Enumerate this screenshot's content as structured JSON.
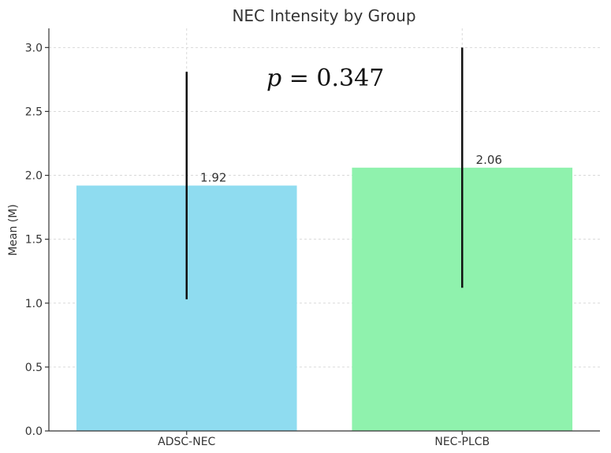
{
  "chart_data": {
    "type": "bar",
    "title": "NEC Intensity by Group",
    "xlabel": "",
    "ylabel": "Mean (M)",
    "categories": [
      "ADSC-NEC",
      "NEC-PLCB"
    ],
    "values": [
      1.92,
      2.06
    ],
    "value_labels": [
      "1.92",
      "2.06"
    ],
    "error_bars": [
      {
        "low": 1.03,
        "high": 2.81
      },
      {
        "low": 1.12,
        "high": 3.0
      }
    ],
    "colors": [
      "#8fdcf0",
      "#8ff2ad"
    ],
    "ylim": [
      0,
      3.15
    ],
    "yticks": [
      0.0,
      0.5,
      1.0,
      1.5,
      2.0,
      2.5,
      3.0
    ],
    "ytick_labels": [
      "0.0",
      "0.5",
      "1.0",
      "1.5",
      "2.0",
      "2.5",
      "3.0"
    ],
    "grid": true,
    "annotation": {
      "italic": "p",
      "rest": " = 0.347"
    }
  }
}
